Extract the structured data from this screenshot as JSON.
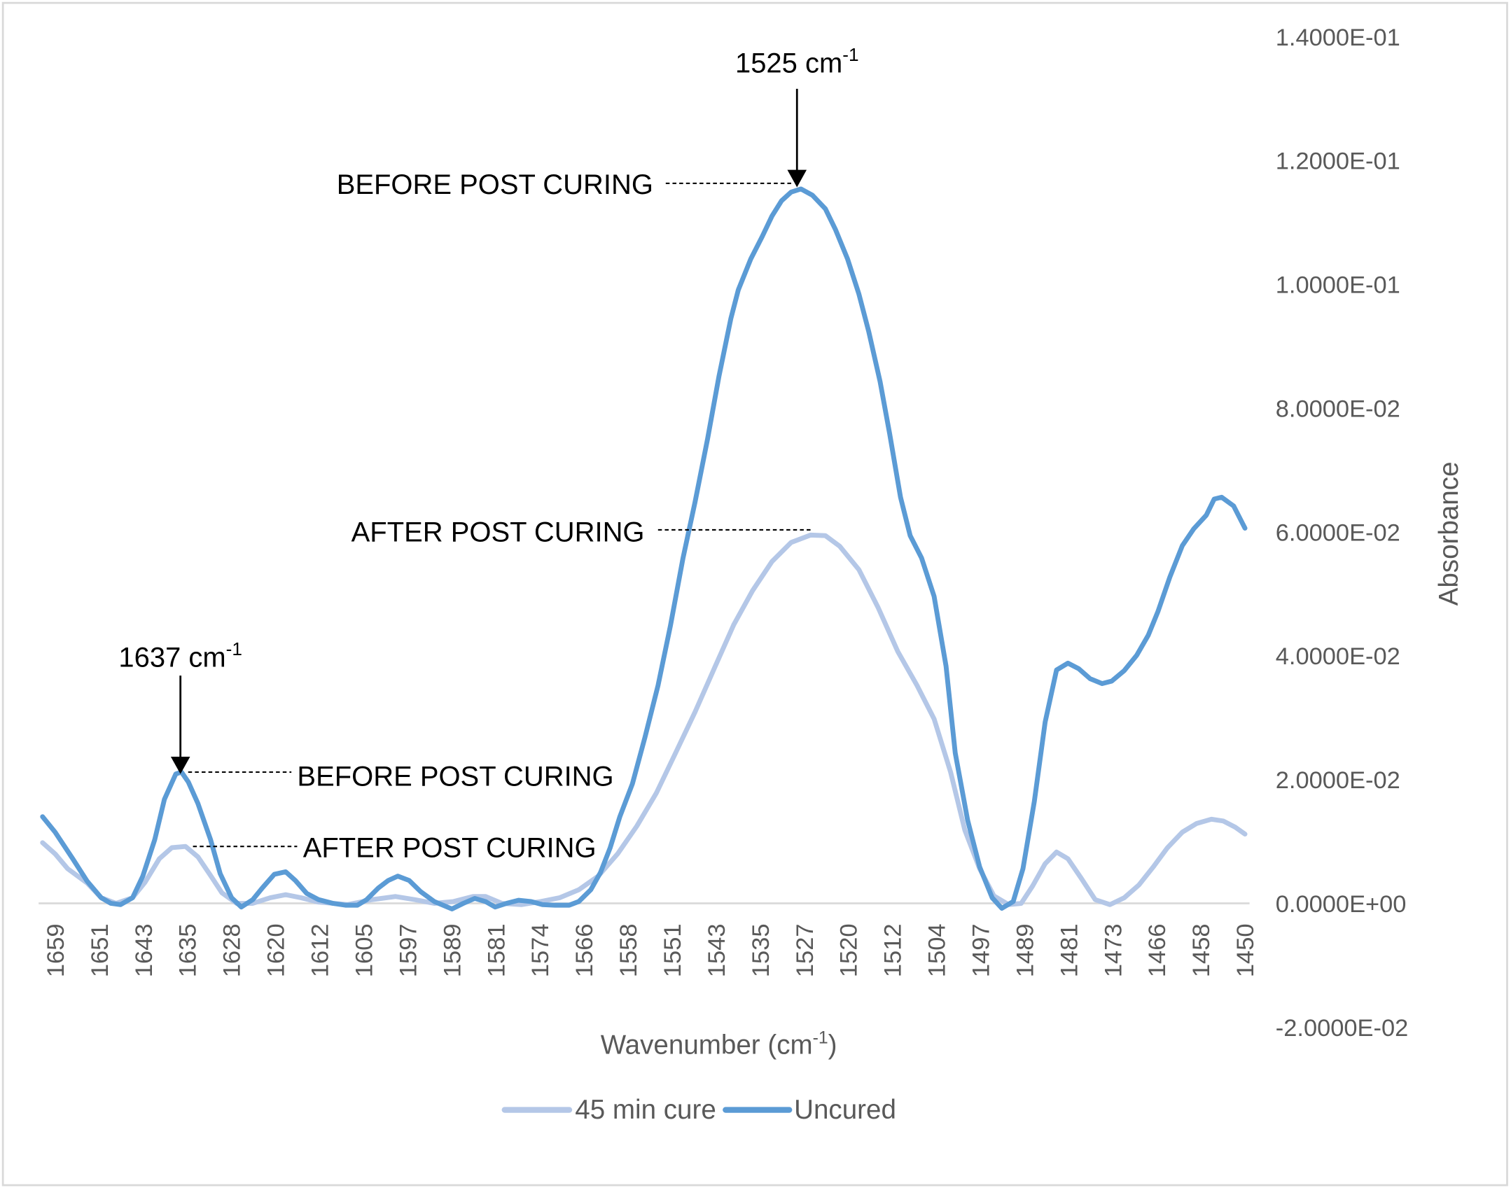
{
  "chart_data": {
    "type": "line",
    "title": "",
    "xlabel": "Wavenumber (cm",
    "xlabel_sup": "-1",
    "xlabel_end": ")",
    "ylabel": "Absorbance",
    "xlim": [
      1661.9,
      1449.2
    ],
    "ylim": [
      -0.02,
      0.14
    ],
    "x_tick_labels": [
      "1659",
      "1651",
      "1643",
      "1635",
      "1628",
      "1620",
      "1612",
      "1605",
      "1597",
      "1589",
      "1581",
      "1574",
      "1566",
      "1558",
      "1551",
      "1543",
      "1535",
      "1527",
      "1520",
      "1512",
      "1504",
      "1497",
      "1489",
      "1481",
      "1473",
      "1466",
      "1458",
      "1450"
    ],
    "y_tick_labels": [
      "1.4000E-01",
      "1.2000E-01",
      "1.0000E-01",
      "8.0000E-02",
      "6.0000E-02",
      "4.0000E-02",
      "2.0000E-02",
      "0.0000E+00",
      "-2.0000E-02"
    ],
    "y_tick_values": [
      0.14,
      0.12,
      0.1,
      0.08,
      0.06,
      0.04,
      0.02,
      0,
      -0.02
    ],
    "legend": {
      "position": "bottom",
      "entries": [
        "45 min cure",
        "Uncured"
      ]
    },
    "series": [
      {
        "name": "45 min cure",
        "color": "#B4C7E7",
        "x": [
          1661.2,
          1659.0,
          1656.8,
          1653.4,
          1650.9,
          1648.3,
          1645.4,
          1643.2,
          1640.7,
          1638.5,
          1636.1,
          1633.9,
          1631.7,
          1629.7,
          1627.1,
          1624.3,
          1621.2,
          1618.5,
          1615.8,
          1612.7,
          1607.6,
          1603.4,
          1599.2,
          1595.8,
          1592.4,
          1589.0,
          1585.6,
          1583.4,
          1580.5,
          1577.1,
          1573.7,
          1570.4,
          1567.0,
          1563.6,
          1560.2,
          1556.8,
          1553.4,
          1550.0,
          1546.6,
          1543.2,
          1539.8,
          1536.5,
          1533.1,
          1529.7,
          1526.3,
          1523.7,
          1521.2,
          1517.8,
          1514.4,
          1511.0,
          1507.6,
          1504.6,
          1501.7,
          1499.2,
          1496.6,
          1494.1,
          1491.5,
          1489.3,
          1487.3,
          1485.1,
          1483.1,
          1481.1,
          1478.8,
          1476.3,
          1473.7,
          1471.2,
          1468.6,
          1466.1,
          1463.6,
          1461.0,
          1458.5,
          1455.9,
          1453.8,
          1451.7,
          1450.0
        ],
        "y": [
          0.0098,
          0.008,
          0.0056,
          0.0033,
          0.0009,
          0,
          0.0009,
          0.0034,
          0.0072,
          0.009,
          0.0092,
          0.0075,
          0.0045,
          0.0017,
          0,
          0,
          0.0009,
          0.0014,
          0.0009,
          0.0002,
          -0.0002,
          0.0006,
          0.0011,
          0.0006,
          0,
          0.0003,
          0.0011,
          0.0011,
          0,
          -0.0002,
          0.0003,
          0.0009,
          0.0022,
          0.0044,
          0.008,
          0.0125,
          0.0178,
          0.0243,
          0.0309,
          0.038,
          0.045,
          0.0505,
          0.0552,
          0.0583,
          0.0595,
          0.0594,
          0.0577,
          0.0539,
          0.0477,
          0.0407,
          0.0352,
          0.0298,
          0.0212,
          0.0118,
          0.0056,
          0.0012,
          -0.0002,
          0,
          0.0028,
          0.0064,
          0.0083,
          0.0072,
          0.0041,
          0.0006,
          -0.0002,
          0.0009,
          0.003,
          0.0059,
          0.009,
          0.0115,
          0.0129,
          0.0136,
          0.0133,
          0.0123,
          0.0112
        ]
      },
      {
        "name": "Uncured",
        "color": "#5B9BD5",
        "x": [
          1661.2,
          1659.0,
          1655.9,
          1653.4,
          1650.9,
          1649.2,
          1647.5,
          1645.4,
          1643.6,
          1641.5,
          1639.8,
          1637.8,
          1636.8,
          1635.6,
          1633.9,
          1631.7,
          1630.0,
          1628.0,
          1626.3,
          1624.3,
          1622.6,
          1620.5,
          1618.5,
          1616.8,
          1614.8,
          1612.7,
          1610.2,
          1608.0,
          1605.9,
          1604.3,
          1602.2,
          1600.5,
          1598.8,
          1596.8,
          1594.8,
          1592.4,
          1589.3,
          1587.3,
          1585.3,
          1583.4,
          1581.7,
          1579.7,
          1577.6,
          1575.4,
          1573.4,
          1571.2,
          1568.7,
          1567.0,
          1564.9,
          1563.2,
          1561.5,
          1559.8,
          1557.6,
          1555.4,
          1553.1,
          1550.9,
          1548.7,
          1546.6,
          1544.4,
          1542.4,
          1540.3,
          1539.0,
          1536.8,
          1534.8,
          1533.1,
          1531.4,
          1529.7,
          1528.0,
          1526.0,
          1523.7,
          1521.9,
          1519.8,
          1517.8,
          1516.1,
          1514.1,
          1512.4,
          1510.5,
          1508.8,
          1506.8,
          1504.6,
          1502.5,
          1500.9,
          1498.7,
          1496.6,
          1494.4,
          1492.7,
          1490.7,
          1489.0,
          1487.0,
          1485.1,
          1483.1,
          1481.1,
          1479.2,
          1477.2,
          1475.1,
          1473.4,
          1471.2,
          1469.0,
          1467.0,
          1465.3,
          1463.2,
          1461.0,
          1459.0,
          1456.8,
          1455.4,
          1454.1,
          1452.0,
          1450.0
        ],
        "y": [
          0.014,
          0.0115,
          0.0072,
          0.0036,
          0.0009,
          0,
          -0.0002,
          0.0009,
          0.0044,
          0.0103,
          0.0168,
          0.0209,
          0.0212,
          0.0196,
          0.0161,
          0.0103,
          0.0048,
          0.0009,
          -0.0006,
          0.0006,
          0.0025,
          0.0047,
          0.0051,
          0.0037,
          0.0016,
          0.0006,
          0,
          -0.0003,
          -0.0003,
          0.0006,
          0.0025,
          0.0037,
          0.0044,
          0.0037,
          0.0019,
          0.0003,
          -0.0009,
          0,
          0.0008,
          0.0003,
          -0.0006,
          0,
          0.0005,
          0.0003,
          -0.0002,
          -0.0003,
          -0.0003,
          0.0003,
          0.0022,
          0.005,
          0.009,
          0.014,
          0.0193,
          0.0268,
          0.0352,
          0.0449,
          0.0558,
          0.0648,
          0.075,
          0.0851,
          0.0945,
          0.0991,
          0.1041,
          0.1077,
          0.111,
          0.1135,
          0.1149,
          0.1154,
          0.1144,
          0.1122,
          0.1088,
          0.1041,
          0.0984,
          0.0924,
          0.0843,
          0.0758,
          0.0656,
          0.0594,
          0.0558,
          0.0496,
          0.0383,
          0.0243,
          0.0134,
          0.0059,
          0.0009,
          -0.0008,
          0.0003,
          0.0056,
          0.0165,
          0.0293,
          0.0377,
          0.0388,
          0.0379,
          0.0363,
          0.0355,
          0.0359,
          0.0376,
          0.0401,
          0.0433,
          0.0471,
          0.0527,
          0.0578,
          0.0605,
          0.0627,
          0.0653,
          0.0656,
          0.0642,
          0.0606
        ]
      }
    ],
    "annotations": {
      "peak_1525": {
        "label": "1525 cm",
        "sup": "-1",
        "wavenumber": 1525
      },
      "peak_1637": {
        "label": "1637 cm",
        "sup": "-1",
        "wavenumber": 1637
      },
      "before_1525": "BEFORE POST CURING",
      "after_1525": "AFTER POST CURING",
      "before_1637": "BEFORE POST CURING",
      "after_1637": "AFTER POST CURING"
    }
  }
}
